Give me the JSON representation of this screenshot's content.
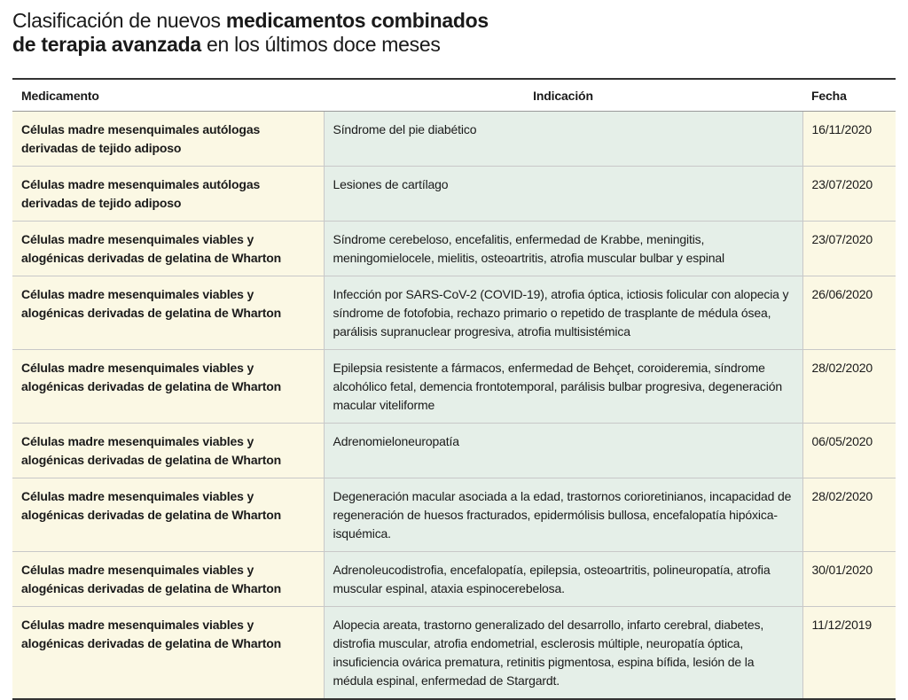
{
  "header": {
    "title": {
      "line1_regular": "Clasificación de nuevos",
      "line1_bold": "medicamentos combinados",
      "line2_bold": "de terapia avanzada",
      "line2_regular": "en los últimos doce meses"
    }
  },
  "table": {
    "columns": [
      "Medicamento",
      "Indicación",
      "Fecha"
    ],
    "rows": [
      [
        "Células madre mesenquimales autólogas derivadas de tejido adiposo",
        "Síndrome del pie diabético",
        "16/11/2020"
      ],
      [
        "Células madre mesenquimales autólogas derivadas de tejido adiposo",
        "Lesiones de cartílago",
        "23/07/2020"
      ],
      [
        "Células madre mesenquimales viables y alogénicas derivadas de gelatina de Wharton",
        "Síndrome cerebeloso, encefalitis, enfermedad de Krabbe, meningitis, meningomielocele, mielitis, osteoartritis, atrofia muscular bulbar y espinal",
        "23/07/2020"
      ],
      [
        "Células madre mesenquimales viables y alogénicas derivadas de gelatina de Wharton",
        "Infección por SARS-CoV-2 (COVID-19), atrofia óptica, ictiosis folicular con alopecia y síndrome de fotofobia, rechazo primario o repetido de trasplante de médula ósea, parálisis supranuclear progresiva, atrofia multisistémica",
        "26/06/2020"
      ],
      [
        "Células madre mesenquimales viables y alogénicas derivadas de gelatina de Wharton",
        "Epilepsia resistente a fármacos, enfermedad de Behçet, coroideremia, síndrome alcohólico fetal, demencia frontotemporal, parálisis bulbar progresiva, degeneración macular viteliforme",
        "28/02/2020"
      ],
      [
        "Células madre mesenquimales viables y alogénicas derivadas de gelatina de Wharton",
        "Adrenomieloneuropatía",
        "06/05/2020"
      ],
      [
        "Células madre mesenquimales viables y alogénicas derivadas de gelatina de Wharton",
        "Degeneración macular asociada a la edad, trastornos corioretinianos, incapacidad de regeneración de huesos fracturados, epidermólisis bullosa, encefalopatía hipóxica-isquémica.",
        "28/02/2020"
      ],
      [
        "Células madre mesenquimales viables y alogénicas derivadas de gelatina de Wharton",
        "Adrenoleucodistrofia, encefalopatía, epilepsia, osteoartritis, polineuropatía, atrofia muscular espinal, ataxia espinocerebelosa.",
        "30/01/2020"
      ],
      [
        "Células madre mesenquimales viables y alogénicas derivadas de gelatina de Wharton",
        "Alopecia areata, trastorno generalizado del desarrollo, infarto cerebral, diabetes, distrofia muscular, atrofia endometrial, esclerosis múltiple, neuropatía óptica, insuficiencia ovárica prematura, retinitis pigmentosa, espina bífida, lesión de la médula espinal, enfermedad de Stargardt.",
        "11/12/2019"
      ]
    ]
  }
}
